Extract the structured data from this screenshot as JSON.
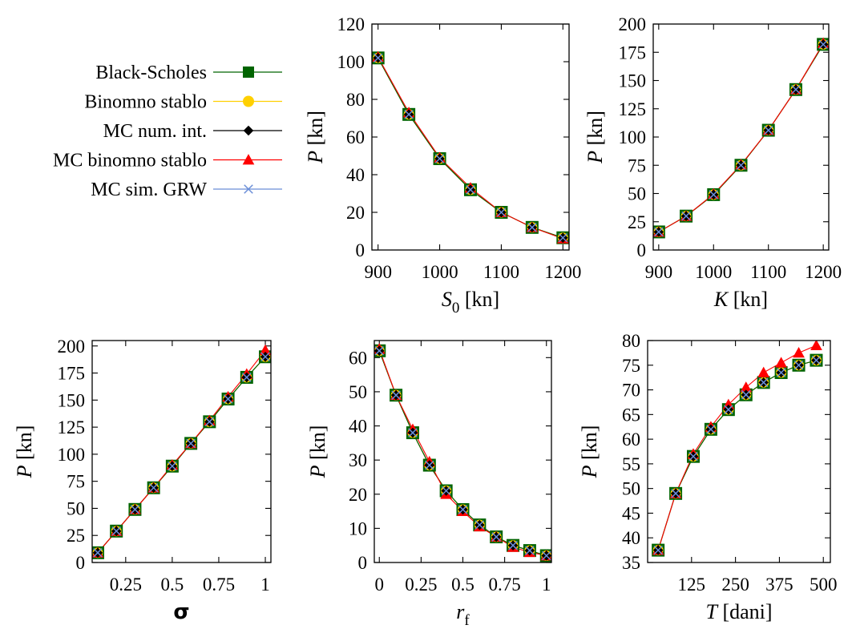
{
  "legend": [
    {
      "name": "Black-Scholes",
      "color": "#006400",
      "marker": "square"
    },
    {
      "name": "Binomno stablo",
      "color": "#ffd000",
      "marker": "circle"
    },
    {
      "name": "MC num. int.",
      "color": "#000000",
      "marker": "diamond"
    },
    {
      "name": "MC binomno stablo",
      "color": "#ff0000",
      "marker": "triangle"
    },
    {
      "name": "MC sim. GRW",
      "color": "#6a8ed8",
      "marker": "cross"
    }
  ],
  "chart_data": [
    {
      "id": "s0",
      "type": "line",
      "xlabel_main": "S",
      "xlabel_sub": "0",
      "xlabel_suffix": " [kn]",
      "ylabel_main": "P",
      "ylabel_suffix": " [kn]",
      "xlim": [
        890,
        1210
      ],
      "ylim": [
        0,
        120
      ],
      "xticks": [
        900,
        1000,
        1100,
        1200
      ],
      "xtick_labels": [
        "900",
        "1000",
        "1100",
        "1200"
      ],
      "yticks": [
        0,
        20,
        40,
        60,
        80,
        100,
        120
      ],
      "ytick_labels": [
        "0",
        "20",
        "40",
        "60",
        "80",
        "100",
        "120"
      ],
      "x": [
        900,
        950,
        1000,
        1050,
        1100,
        1150,
        1200
      ],
      "series": [
        {
          "name": "Black-Scholes",
          "values": [
            102,
            72,
            48.5,
            32,
            20,
            12,
            6.5
          ]
        },
        {
          "name": "Binomno stablo",
          "values": [
            102,
            72,
            48.5,
            32,
            20,
            12,
            6.5
          ]
        },
        {
          "name": "MC num. int.",
          "values": [
            102,
            72,
            48.5,
            32,
            20,
            12,
            6.5
          ]
        },
        {
          "name": "MC binomno stablo",
          "values": [
            102.5,
            73,
            49,
            33,
            20,
            12,
            6
          ]
        },
        {
          "name": "MC sim. GRW",
          "values": [
            102,
            72,
            48.5,
            32,
            20,
            12,
            6.5
          ]
        }
      ]
    },
    {
      "id": "k",
      "type": "line",
      "xlabel_main": "K",
      "xlabel_sub": "",
      "xlabel_suffix": "  [kn]",
      "ylabel_main": "P",
      "ylabel_suffix": " [kn]",
      "xlim": [
        890,
        1210
      ],
      "ylim": [
        0,
        200
      ],
      "xticks": [
        900,
        1000,
        1100,
        1200
      ],
      "xtick_labels": [
        "900",
        "1000",
        "1100",
        "1200"
      ],
      "yticks": [
        0,
        25,
        50,
        75,
        100,
        125,
        150,
        175,
        200
      ],
      "ytick_labels": [
        "0",
        "25",
        "50",
        "75",
        "100",
        "125",
        "150",
        "175",
        "200"
      ],
      "x": [
        900,
        950,
        1000,
        1050,
        1100,
        1150,
        1200
      ],
      "series": [
        {
          "name": "Black-Scholes",
          "values": [
            16,
            30,
            49,
            75,
            106,
            142,
            182
          ]
        },
        {
          "name": "Binomno stablo",
          "values": [
            16,
            30,
            49,
            75,
            106,
            142,
            182
          ]
        },
        {
          "name": "MC num. int.",
          "values": [
            16,
            30,
            49,
            75,
            106,
            142,
            182
          ]
        },
        {
          "name": "MC binomno stablo",
          "values": [
            16,
            30,
            49.5,
            75.5,
            106,
            142,
            183
          ]
        },
        {
          "name": "MC sim. GRW",
          "values": [
            16,
            30,
            49,
            75,
            106,
            142,
            182
          ]
        }
      ]
    },
    {
      "id": "sigma",
      "type": "line",
      "xlabel_main": "σ",
      "xlabel_sub": "",
      "xlabel_suffix": "",
      "ylabel_main": "P",
      "ylabel_suffix": " [kn]",
      "xlim": [
        0.07,
        1.03
      ],
      "ylim": [
        0,
        205
      ],
      "xticks": [
        0.25,
        0.5,
        0.75,
        1
      ],
      "xtick_labels": [
        "0.25",
        "0.5",
        "0.75",
        "1"
      ],
      "yticks": [
        0,
        25,
        50,
        75,
        100,
        125,
        150,
        175,
        200
      ],
      "ytick_labels": [
        "0",
        "25",
        "50",
        "75",
        "100",
        "125",
        "150",
        "175",
        "200"
      ],
      "x": [
        0.1,
        0.2,
        0.3,
        0.4,
        0.5,
        0.6,
        0.7,
        0.8,
        0.9,
        1.0
      ],
      "series": [
        {
          "name": "Black-Scholes",
          "values": [
            9,
            29,
            49,
            69,
            89,
            110,
            130,
            151,
            171,
            190
          ]
        },
        {
          "name": "Binomno stablo",
          "values": [
            9,
            29,
            49,
            69,
            89,
            110,
            130,
            151,
            171,
            190
          ]
        },
        {
          "name": "MC num. int.",
          "values": [
            9,
            29,
            49,
            69,
            89,
            110,
            130,
            151,
            171,
            190
          ]
        },
        {
          "name": "MC binomno stablo",
          "values": [
            9,
            29,
            49,
            69,
            90,
            110,
            131,
            153,
            174,
            196
          ]
        },
        {
          "name": "MC sim. GRW",
          "values": [
            9,
            29,
            49,
            69,
            89,
            110,
            130,
            151,
            171,
            190
          ]
        }
      ]
    },
    {
      "id": "rf",
      "type": "line",
      "xlabel_main": "r",
      "xlabel_sub": "f",
      "xlabel_suffix": "",
      "ylabel_main": "P",
      "ylabel_suffix": " [kn]",
      "xlim": [
        -0.03,
        1.03
      ],
      "ylim": [
        0,
        65
      ],
      "xticks": [
        0,
        0.25,
        0.5,
        0.75,
        1
      ],
      "xtick_labels": [
        "0",
        "0.25",
        "0.5",
        "0.75",
        "1"
      ],
      "yticks": [
        0,
        10,
        20,
        30,
        40,
        50,
        60
      ],
      "ytick_labels": [
        "0",
        "10",
        "20",
        "30",
        "40",
        "50",
        "60"
      ],
      "x": [
        0,
        0.1,
        0.2,
        0.3,
        0.4,
        0.5,
        0.6,
        0.7,
        0.8,
        0.9,
        1.0
      ],
      "series": [
        {
          "name": "Black-Scholes",
          "values": [
            62,
            49,
            38,
            28.5,
            21,
            15.5,
            11,
            7.5,
            5,
            3.5,
            2
          ]
        },
        {
          "name": "Binomno stablo",
          "values": [
            62,
            49,
            38,
            28.5,
            21,
            15.5,
            11,
            7.5,
            5,
            3.5,
            2
          ]
        },
        {
          "name": "MC num. int.",
          "values": [
            62,
            49,
            38,
            28.5,
            21,
            15.5,
            11,
            7.5,
            5,
            3.5,
            2
          ]
        },
        {
          "name": "MC binomno stablo",
          "values": [
            62.5,
            49,
            39,
            29.5,
            20,
            15,
            10.5,
            7.5,
            4.5,
            3,
            2
          ]
        },
        {
          "name": "MC sim. GRW",
          "values": [
            62,
            49,
            38,
            28.5,
            21,
            15.5,
            11,
            7.5,
            5,
            3.5,
            2
          ]
        }
      ]
    },
    {
      "id": "t",
      "type": "line",
      "xlabel_main": "T",
      "xlabel_sub": "",
      "xlabel_suffix": " [dani]",
      "ylabel_main": "P",
      "ylabel_suffix": " [kn]",
      "xlim": [
        0,
        520
      ],
      "ylim": [
        35,
        80
      ],
      "xticks": [
        125,
        250,
        375,
        500
      ],
      "xtick_labels": [
        "125",
        "250",
        "375",
        "500"
      ],
      "yticks": [
        35,
        40,
        45,
        50,
        55,
        60,
        65,
        70,
        75,
        80
      ],
      "ytick_labels": [
        "35",
        "40",
        "45",
        "50",
        "55",
        "60",
        "65",
        "70",
        "75",
        "80"
      ],
      "x": [
        30,
        80,
        130,
        180,
        230,
        280,
        330,
        380,
        430,
        480
      ],
      "series": [
        {
          "name": "Black-Scholes",
          "values": [
            37.5,
            49,
            56.5,
            62,
            66,
            69,
            71.5,
            73.5,
            75,
            76
          ]
        },
        {
          "name": "Binomno stablo",
          "values": [
            37.5,
            49,
            56.5,
            62,
            66,
            69,
            71.5,
            73.5,
            75,
            76
          ]
        },
        {
          "name": "MC num. int.",
          "values": [
            37.5,
            49,
            56.5,
            62,
            66,
            69,
            71.5,
            73.5,
            75,
            76
          ]
        },
        {
          "name": "MC binomno stablo",
          "values": [
            37.5,
            49,
            57,
            62.5,
            67,
            70.5,
            73.5,
            75.5,
            77.5,
            79
          ]
        },
        {
          "name": "MC sim. GRW",
          "values": [
            37.5,
            49,
            56.5,
            62,
            66,
            69,
            71.5,
            73.5,
            75,
            76
          ]
        }
      ]
    }
  ]
}
